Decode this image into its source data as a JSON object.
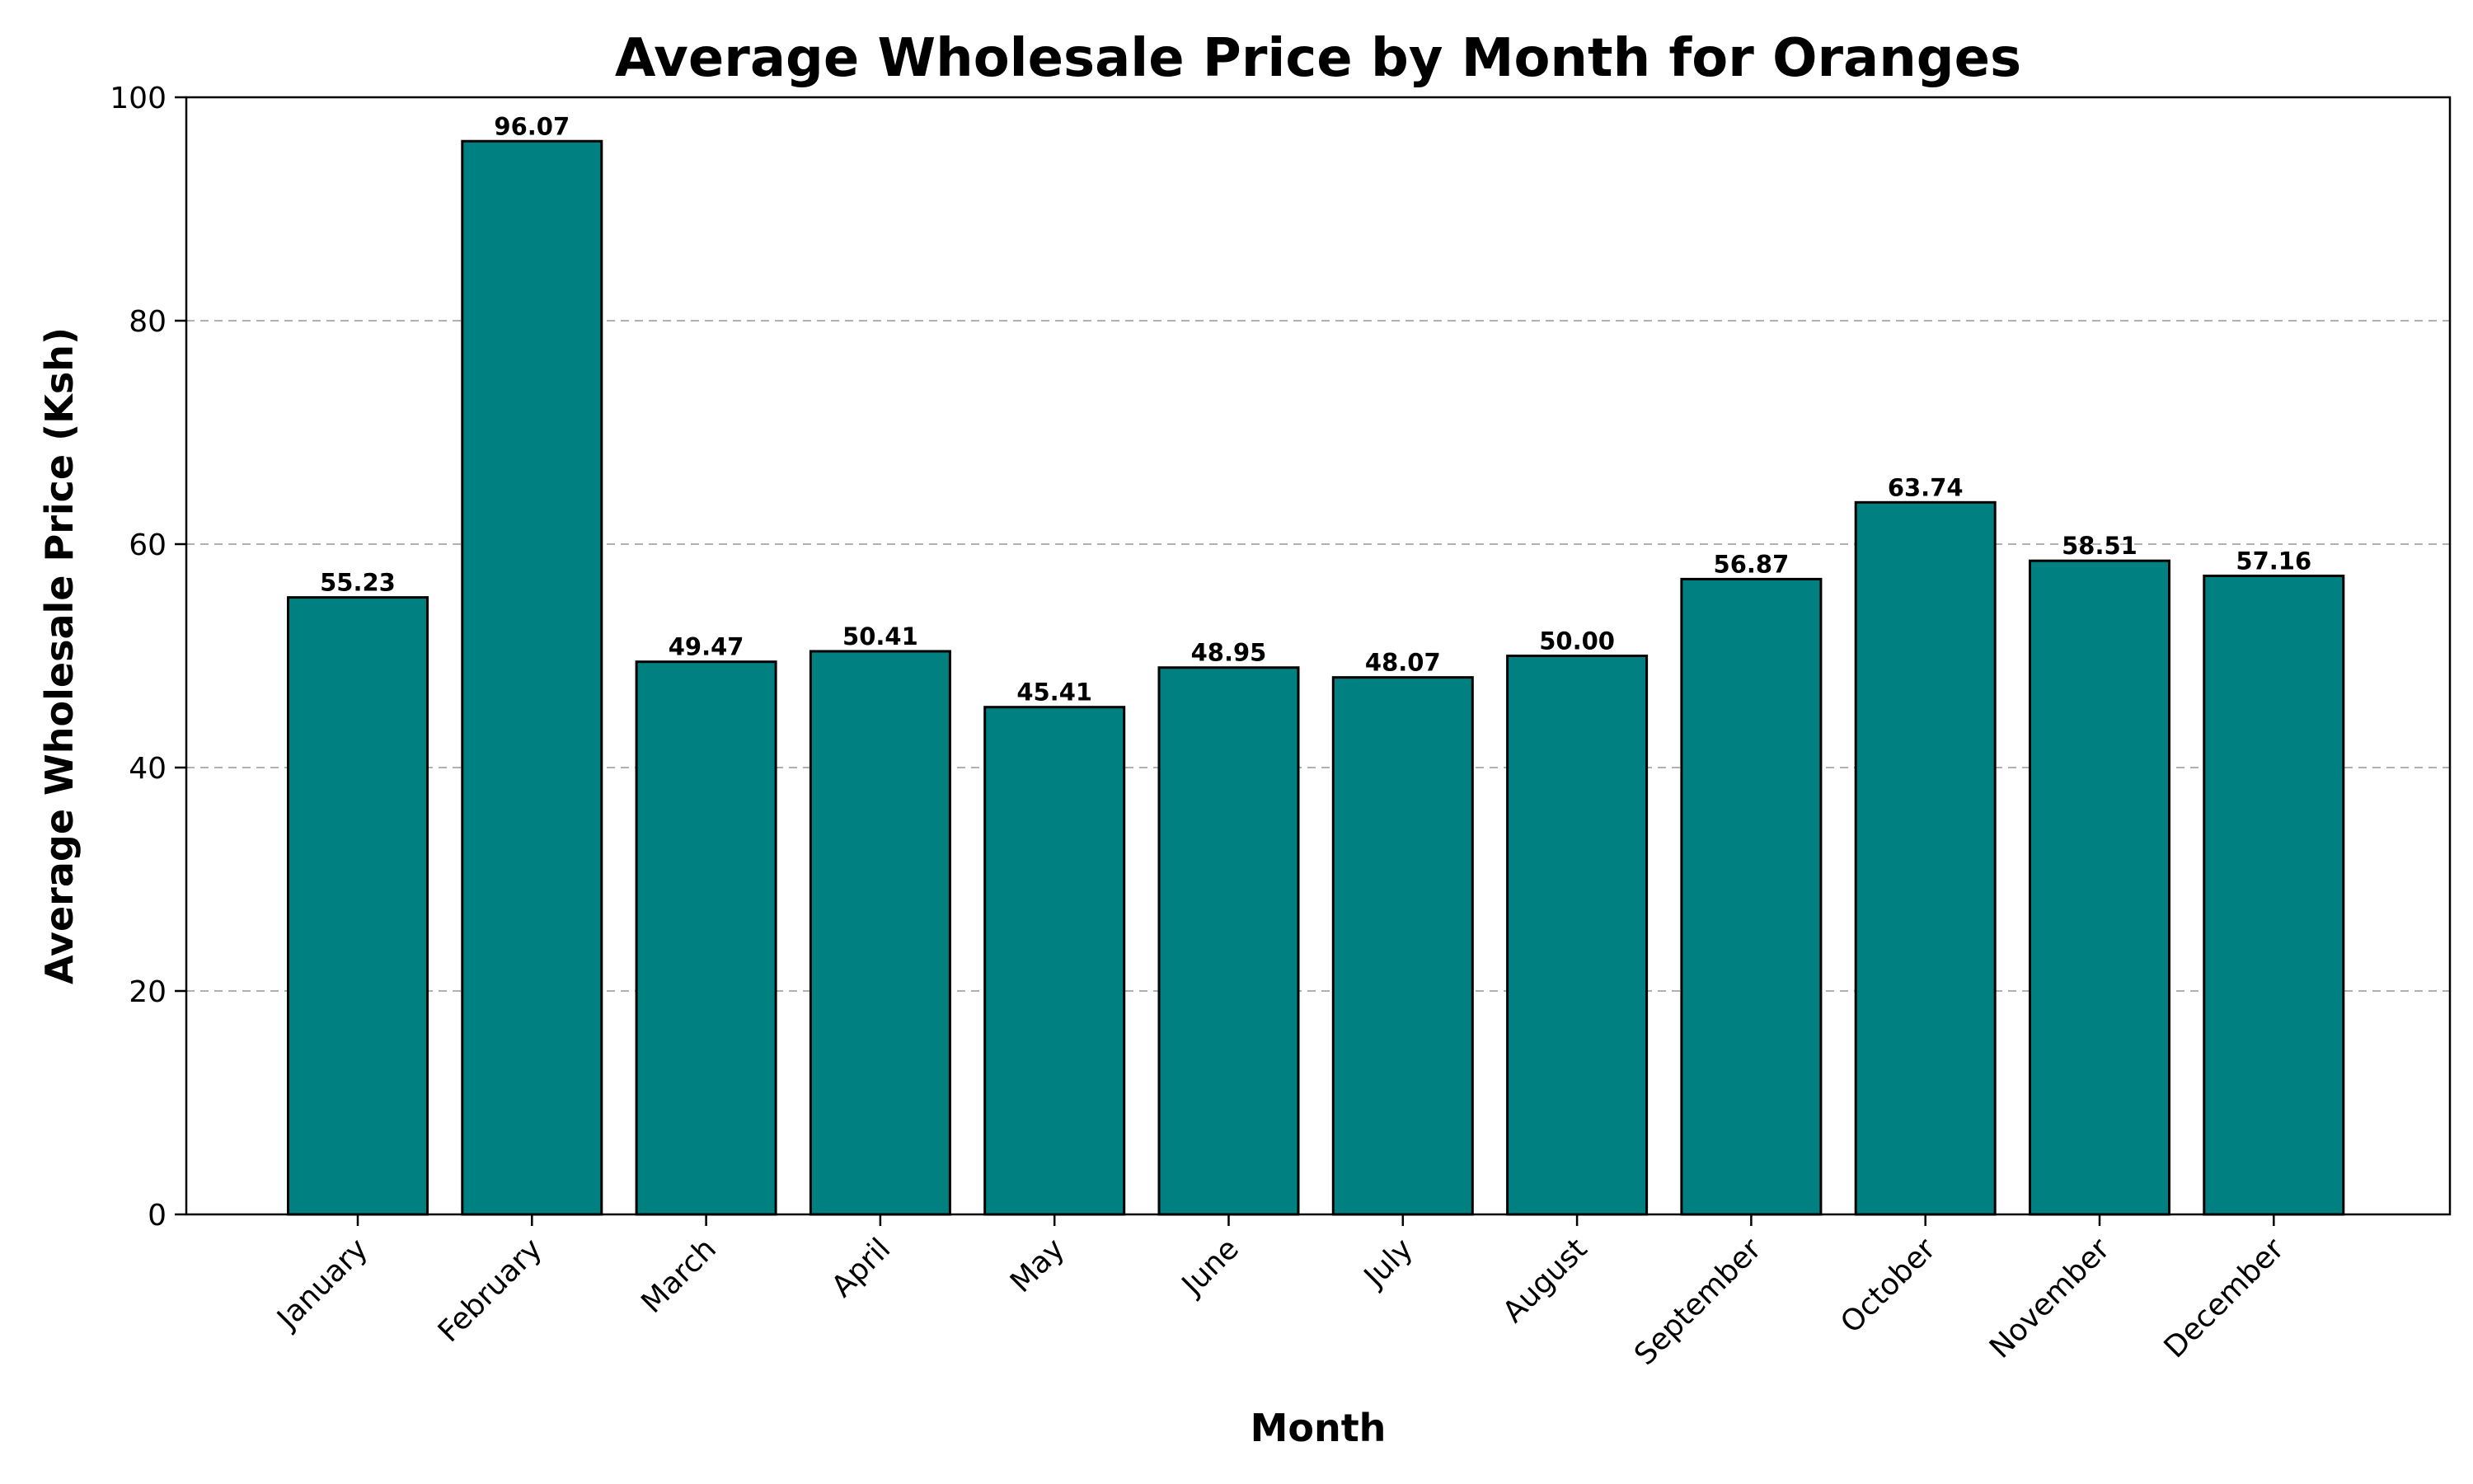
{
  "chart_data": {
    "type": "bar",
    "title": "Average Wholesale Price by Month for Oranges",
    "xlabel": "Month",
    "ylabel": "Average Wholesale Price (Ksh)",
    "categories": [
      "January",
      "February",
      "March",
      "April",
      "May",
      "June",
      "July",
      "August",
      "September",
      "October",
      "November",
      "December"
    ],
    "values": [
      55.23,
      96.07,
      49.47,
      50.41,
      45.41,
      48.95,
      48.07,
      50.0,
      56.87,
      63.74,
      58.51,
      57.16
    ],
    "value_labels": [
      "55.23",
      "96.07",
      "49.47",
      "50.41",
      "45.41",
      "48.95",
      "48.07",
      "50.00",
      "56.87",
      "63.74",
      "58.51",
      "57.16"
    ],
    "ylim": [
      0,
      100
    ],
    "yticks": [
      0,
      20,
      40,
      60,
      80,
      100
    ],
    "ytick_labels": [
      "0",
      "20",
      "40",
      "60",
      "80",
      "100"
    ],
    "grid": "y-dashed",
    "bar_color": "#008080",
    "bar_edge_color": "#000000"
  }
}
